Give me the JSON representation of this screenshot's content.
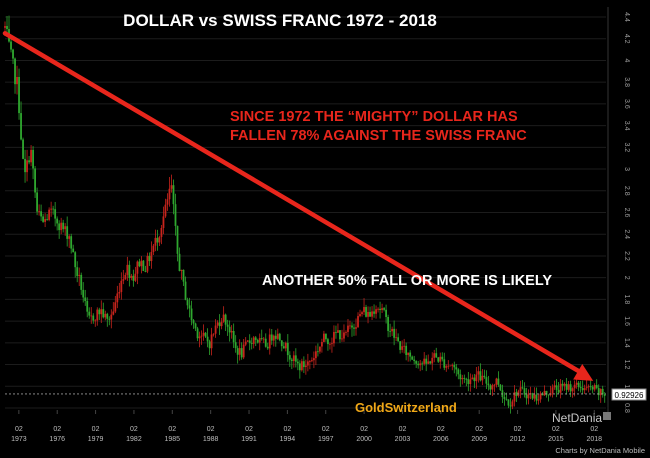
{
  "chart_data": {
    "type": "candlestick",
    "title": "DOLLAR  vs  SWISS FRANC   1972 - 2018",
    "annotations": [
      {
        "text": "SINCE 1972  THE “MIGHTY” DOLLAR HAS",
        "color": "#e8261c"
      },
      {
        "text": "FALLEN 78% AGAINST THE SWISS FRANC",
        "color": "#e8261c"
      },
      {
        "text": "ANOTHER 50% FALL OR MORE IS LIKELY",
        "color": "#ffffff"
      }
    ],
    "watermark": "GoldSwitzerland",
    "brand": "NetDania",
    "credit": "Charts by NetDania Mobile",
    "last_price": "0.92926",
    "ylim": [
      0.8,
      4.4
    ],
    "y_ticks": [
      "4.4",
      "4.2",
      "4",
      "3.8",
      "3.6",
      "3.4",
      "3.2",
      "3",
      "2.8",
      "2.6",
      "2.4",
      "2.2",
      "2",
      "1.8",
      "1.6",
      "1.4",
      "1.2",
      "1",
      "0.8"
    ],
    "x_ticks": [
      {
        "month": "02",
        "year": "1973"
      },
      {
        "month": "02",
        "year": "1976"
      },
      {
        "month": "02",
        "year": "1979"
      },
      {
        "month": "02",
        "year": "1982"
      },
      {
        "month": "02",
        "year": "1985"
      },
      {
        "month": "02",
        "year": "1988"
      },
      {
        "month": "02",
        "year": "1991"
      },
      {
        "month": "02",
        "year": "1994"
      },
      {
        "month": "02",
        "year": "1997"
      },
      {
        "month": "02",
        "year": "2000"
      },
      {
        "month": "02",
        "year": "2003"
      },
      {
        "month": "02",
        "year": "2006"
      },
      {
        "month": "02",
        "year": "2009"
      },
      {
        "month": "02",
        "year": "2012"
      },
      {
        "month": "02",
        "year": "2015"
      },
      {
        "month": "02",
        "year": "2018"
      }
    ],
    "series": [
      {
        "x": [
          1972.0,
          1972.5,
          1973.0,
          1973.5,
          1974.0,
          1974.5,
          1975.0,
          1975.5,
          1976.0,
          1976.5,
          1977.0,
          1977.5,
          1978.0,
          1978.5,
          1979.0,
          1979.5,
          1980.0,
          1980.5,
          1981.0,
          1981.5,
          1982.0,
          1982.5,
          1983.0,
          1983.5,
          1984.0,
          1984.5,
          1985.0,
          1985.5,
          1986.0,
          1986.5,
          1987.0,
          1987.5,
          1988.0,
          1988.5,
          1989.0,
          1989.5,
          1990.0,
          1990.5,
          1991.0,
          1991.5,
          1992.0,
          1992.5,
          1993.0,
          1993.5,
          1994.0,
          1994.5,
          1995.0,
          1995.5,
          1996.0,
          1996.5,
          1997.0,
          1997.5,
          1998.0,
          1998.5,
          1999.0,
          1999.5,
          2000.0,
          2000.5,
          2001.0,
          2001.5,
          2002.0,
          2002.5,
          2003.0,
          2003.5,
          2004.0,
          2004.5,
          2005.0,
          2005.5,
          2006.0,
          2006.5,
          2007.0,
          2007.5,
          2008.0,
          2008.5,
          2009.0,
          2009.5,
          2010.0,
          2010.5,
          2011.0,
          2011.5,
          2012.0,
          2012.5,
          2013.0,
          2013.5,
          2014.0,
          2014.5,
          2015.0,
          2015.5,
          2016.0,
          2016.5,
          2017.0,
          2017.5,
          2018.0,
          2018.5
        ],
        "y": [
          4.3,
          4.0,
          3.75,
          2.9,
          3.2,
          2.6,
          2.5,
          2.6,
          2.55,
          2.45,
          2.4,
          2.1,
          1.9,
          1.6,
          1.65,
          1.7,
          1.6,
          1.7,
          1.95,
          2.1,
          2.0,
          2.15,
          2.1,
          2.25,
          2.4,
          2.6,
          2.85,
          2.2,
          1.9,
          1.65,
          1.5,
          1.45,
          1.4,
          1.55,
          1.65,
          1.55,
          1.35,
          1.3,
          1.4,
          1.45,
          1.4,
          1.38,
          1.5,
          1.45,
          1.35,
          1.25,
          1.18,
          1.2,
          1.25,
          1.35,
          1.45,
          1.42,
          1.5,
          1.45,
          1.55,
          1.6,
          1.7,
          1.65,
          1.75,
          1.7,
          1.55,
          1.45,
          1.35,
          1.3,
          1.25,
          1.22,
          1.2,
          1.28,
          1.25,
          1.2,
          1.2,
          1.1,
          1.05,
          1.08,
          1.1,
          1.05,
          1.0,
          1.06,
          0.9,
          0.85,
          0.95,
          0.95,
          0.92,
          0.9,
          0.92,
          0.95,
          0.98,
          0.98,
          1.0,
          0.99,
          1.0,
          0.97,
          0.98,
          0.93
        ]
      }
    ],
    "trendline": {
      "from": {
        "x": 1972.0,
        "y": 4.25
      },
      "to": {
        "x": 2018.0,
        "y": 1.05
      }
    },
    "reference_line": 0.92926
  }
}
